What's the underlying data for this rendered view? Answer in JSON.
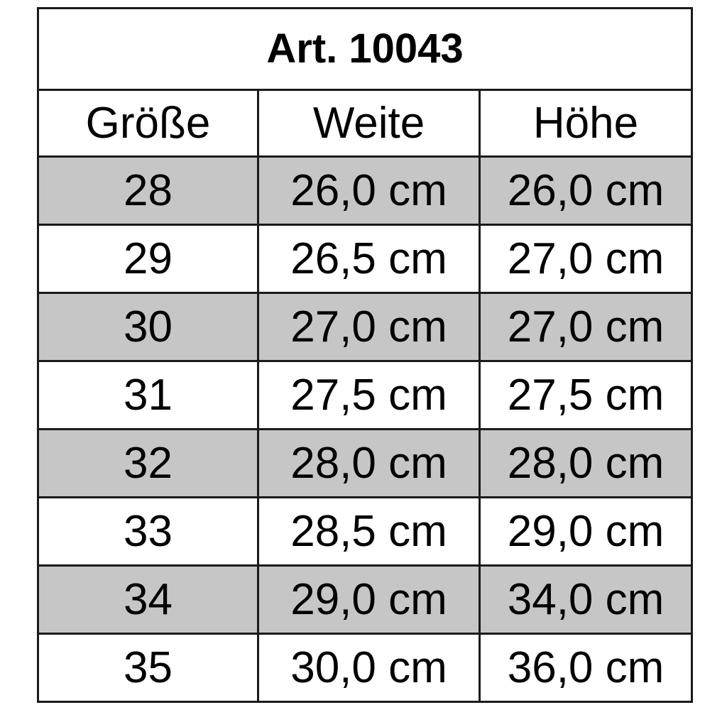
{
  "title": "Art. 10043",
  "headers": [
    "Größe",
    "Weite",
    "Höhe"
  ],
  "rows": [
    [
      "28",
      "26,0 cm",
      "26,0 cm"
    ],
    [
      "29",
      "26,5 cm",
      "27,0 cm"
    ],
    [
      "30",
      "27,0 cm",
      "27,0 cm"
    ],
    [
      "31",
      "27,5 cm",
      "27,5 cm"
    ],
    [
      "32",
      "28,0 cm",
      "28,0 cm"
    ],
    [
      "33",
      "28,5 cm",
      "29,0 cm"
    ],
    [
      "34",
      "29,0 cm",
      "34,0 cm"
    ],
    [
      "35",
      "30,0 cm",
      "36,0 cm"
    ]
  ],
  "colors": {
    "shaded_row": "#c6c6c6",
    "border": "#1a1a1a"
  }
}
